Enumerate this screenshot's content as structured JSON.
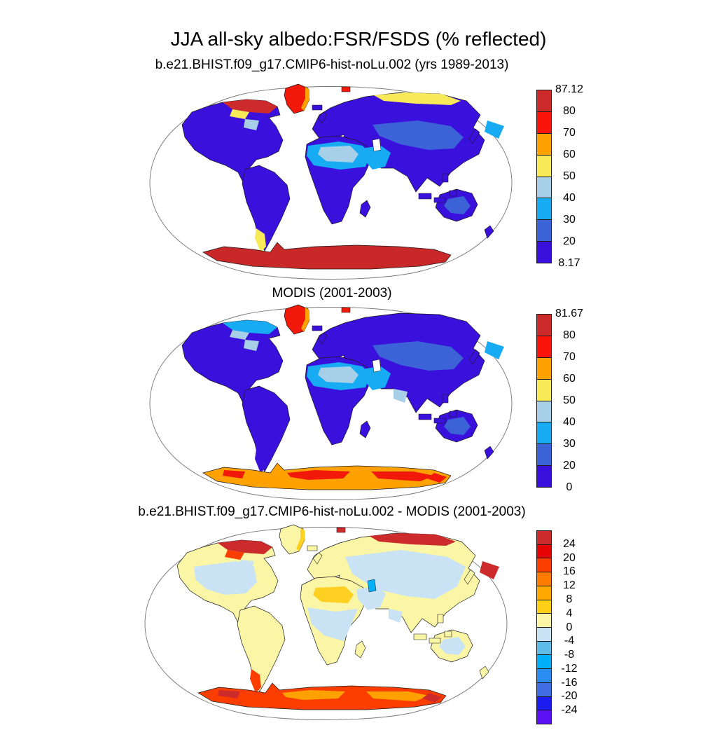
{
  "title": "JJA all-sky albedo:FSR/FSDS (% reflected)",
  "map_style": {
    "ocean": "#ffffff",
    "coastline": "#1a1a1a",
    "frame": "#777777",
    "background": "#ffffff"
  },
  "panels": [
    {
      "subtitle": "b.e21.BHIST.f09_g17.CMIP6-hist-noLu.002 (yrs 1989-2013)",
      "colorbar": {
        "segment_colors": [
          "#cd2b2b",
          "#f9150b",
          "#ffa101",
          "#f8e959",
          "#a8cfe8",
          "#16abf3",
          "#3c62d8",
          "#3a10dd"
        ],
        "labels": [
          "87.12",
          "80",
          "70",
          "60",
          "50",
          "40",
          "30",
          "20",
          "8.17"
        ]
      },
      "regions": {
        "ocean": "#ffffff",
        "north_america": "#3a10dd",
        "greenland": "#f2180a",
        "greenland_edge": "#ffa101",
        "south_america": "#3a10dd",
        "patagonia": "#f8e959",
        "eurasia": "#3a10dd",
        "arabia": "#16abf3",
        "africa": "#3a10dd",
        "sahara": "#16abf3",
        "sahara_light": "#a8cfe8",
        "sahel": "none",
        "central_asia": "#3c62d8",
        "siberia": "none",
        "n_siberia_coast": "#f8e959",
        "arctic_canada": "#cd2b2b",
        "arctic_canada_south": "#f8e959",
        "hudson": "#a8cfe8",
        "na_interior": "none",
        "australia": "#3a10dd",
        "australia_patch": "#3c62d8",
        "antarctica": "#c82828",
        "antarctica_streaks": "none",
        "antarctica_spots": "none",
        "islands": "#3a10dd",
        "svalbard": "#f2180a",
        "chukotka": "#16abf3",
        "caspian": "#ffffff",
        "nw_india": "none"
      }
    },
    {
      "subtitle": "MODIS (2001-2003)",
      "colorbar": {
        "segment_colors": [
          "#cd2b2b",
          "#f9150b",
          "#ffa101",
          "#f8e959",
          "#a8cfe8",
          "#16abf3",
          "#3c62d8",
          "#3a10dd"
        ],
        "labels": [
          "81.67",
          "80",
          "70",
          "60",
          "50",
          "40",
          "30",
          "20",
          "0"
        ]
      },
      "regions": {
        "ocean": "#ffffff",
        "north_america": "#3a10dd",
        "greenland": "#f2180a",
        "greenland_edge": "#ffa101",
        "south_america": "#3a10dd",
        "patagonia": "#3a10dd",
        "eurasia": "#3a10dd",
        "arabia": "#16abf3",
        "africa": "#3a10dd",
        "sahara": "#16abf3",
        "sahara_light": "#a8cfe8",
        "sahel": "none",
        "central_asia": "#3c62d8",
        "siberia": "none",
        "n_siberia_coast": "none",
        "arctic_canada": "#16abf3",
        "arctic_canada_south": "#a8cfe8",
        "hudson": "#a8cfe8",
        "na_interior": "none",
        "australia": "#3a10dd",
        "australia_patch": "#3c62d8",
        "antarctica": "#ffa101",
        "antarctica_streaks": "#f2180a",
        "antarctica_spots": "#f2180a",
        "islands": "#3a10dd",
        "svalbard": "#f2180a",
        "chukotka": "#16abf3",
        "caspian": "#ffffff",
        "nw_india": "#a8cfe8"
      }
    },
    {
      "subtitle": "b.e21.BHIST.f09_g17.CMIP6-hist-noLu.002 - MODIS (2001-2003)",
      "colorbar": {
        "segment_colors": [
          "#cd2b2b",
          "#e60303",
          "#fc3d00",
          "#ff7c00",
          "#ffa800",
          "#fdd017",
          "#faf6a6",
          "#c9e3f4",
          "#5fbce8",
          "#00b0f8",
          "#2b8cf2",
          "#3f6ce0",
          "#1b1df0",
          "#5a10f2"
        ],
        "labels": [
          "24",
          "20",
          "16",
          "12",
          "8",
          "4",
          "0",
          "-4",
          "-8",
          "-12",
          "-16",
          "-20",
          "-24"
        ]
      },
      "regions": {
        "ocean": "#ffffff",
        "north_america": "#faf6a6",
        "greenland": "#faf6a6",
        "greenland_edge": "#ffd021",
        "south_america": "#faf6a6",
        "patagonia": "#fc3d00",
        "eurasia": "#faf6a6",
        "arabia": "#c9e3f4",
        "africa": "#faf6a6",
        "sahara": "#faf6a6",
        "sahara_light": "#ffd021",
        "sahel": "#c9e3f4",
        "central_asia": "#c9e3f4",
        "siberia": "#c9e3f4",
        "n_siberia_coast": "#cd2b2b",
        "arctic_canada": "#cd2b2b",
        "arctic_canada_south": "#fc3d00",
        "hudson": "#c9e3f4",
        "na_interior": "#c9e3f4",
        "australia": "#faf6a6",
        "australia_patch": "#c9e3f4",
        "antarctica": "#fc3d00",
        "antarctica_streaks": "#ffa101",
        "antarctica_spots": "#cd2b2b",
        "islands": "#faf6a6",
        "svalbard": "#cd2b2b",
        "chukotka": "#cd2b2b",
        "caspian": "#00b0f8",
        "nw_india": "#c9e3f4"
      }
    }
  ],
  "chart_data": [
    {
      "type": "heatmap",
      "title": "b.e21.BHIST.f09_g17.CMIP6-hist-noLu.002 (yrs 1989-2013)",
      "units": "% reflected",
      "projection": "robinson-world-map",
      "variable": "JJA all-sky albedo FSR/FSDS",
      "min": 8.17,
      "max": 87.12,
      "colorbar_levels": [
        8.17,
        20,
        30,
        40,
        50,
        60,
        70,
        80,
        87.12
      ],
      "palette_low_to_high": [
        "#3a10dd",
        "#3c62d8",
        "#16abf3",
        "#a8cfe8",
        "#f8e959",
        "#ffa101",
        "#f9150b",
        "#cd2b2b"
      ],
      "region_values": {
        "most_vegetated_land": "8-20",
        "high_latitude_eurasia_canada": "20-30",
        "sahara_arabia_deserts": "30-50",
        "greenland_ice_sheet": "70-87",
        "arctic_canada_islands": "mixed 40-87",
        "antarctica": "80-87.12",
        "ocean": "masked (white)"
      }
    },
    {
      "type": "heatmap",
      "title": "MODIS (2001-2003)",
      "units": "% reflected",
      "projection": "robinson-world-map",
      "variable": "JJA all-sky albedo",
      "min": 0,
      "max": 81.67,
      "colorbar_levels": [
        0,
        20,
        30,
        40,
        50,
        60,
        70,
        80,
        81.67
      ],
      "palette_low_to_high": [
        "#3a10dd",
        "#3c62d8",
        "#16abf3",
        "#a8cfe8",
        "#f8e959",
        "#ffa101",
        "#f9150b",
        "#cd2b2b"
      ],
      "region_values": {
        "most_vegetated_land": "0-20",
        "central_asia_band": "20-30",
        "sahara_arabia_deserts": "30-50",
        "greenland_ice_sheet": "70-81",
        "antarctica": "60-80 (orange with red patches)",
        "ocean": "masked (white)"
      }
    },
    {
      "type": "heatmap",
      "title": "b.e21.BHIST.f09_g17.CMIP6-hist-noLu.002 - MODIS (2001-2003)",
      "units": "% reflected (difference)",
      "projection": "robinson-world-map",
      "variable": "model minus MODIS JJA albedo difference",
      "min": -24,
      "max": 24,
      "colorbar_levels": [
        -24,
        -20,
        -16,
        -12,
        -8,
        -4,
        0,
        4,
        8,
        12,
        16,
        20,
        24
      ],
      "palette_low_to_high": [
        "#5a10f2",
        "#1b1df0",
        "#3f6ce0",
        "#2b8cf2",
        "#00b0f8",
        "#5fbce8",
        "#c9e3f4",
        "#faf6a6",
        "#fdd017",
        "#ffa800",
        "#ff7c00",
        "#fc3d00",
        "#e60303",
        "#cd2b2b"
      ],
      "region_values": {
        "most_land": "0 to 4 (pale yellow)",
        "mid_canada_siberia_sahel": "-4 to 0 (pale blue)",
        "arctic_canada_north_siberia_coast": "+16 to +24 (red)",
        "antarctica": "+8 to +20 (orange-red)",
        "patagonia_tip": "+12 to +16",
        "caspian_area_spot": "-12",
        "ocean": "masked (white)"
      }
    }
  ]
}
